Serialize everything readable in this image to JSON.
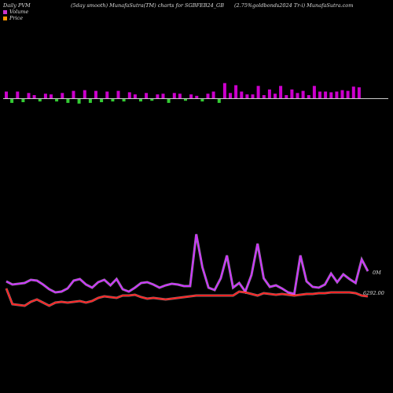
{
  "header": {
    "left": "Daily PVM",
    "center": "(5day smooth) MunafaSutra(TM) charts for SGBFEB24_GB",
    "right": "(2.75%goldbonds2024  Tr-i) MunafaSutra.com"
  },
  "legend": {
    "volume_label": "Volume",
    "price_label": "Price",
    "volume_color": "#cc33cc",
    "price_color": "#ff9900"
  },
  "labels": {
    "volume_axis": "0M",
    "price_axis": "6292.00"
  },
  "colors": {
    "background": "#000000",
    "volume_up": "#cc00cc",
    "volume_down": "#33cc33",
    "volume_line": "#cc33ff",
    "price_line": "#ff2222",
    "baseline": "#cccccc"
  },
  "chart_data": {
    "type": "line",
    "volume_bars": [
      10,
      -6,
      10,
      -5,
      8,
      5,
      -4,
      7,
      6,
      -4,
      8,
      -6,
      11,
      -7,
      12,
      -6,
      11,
      -5,
      10,
      -4,
      11,
      -4,
      9,
      6,
      -4,
      8,
      -3,
      6,
      7,
      -6,
      8,
      7,
      -3,
      6,
      4,
      -4,
      7,
      10,
      -6,
      22,
      8,
      19,
      10,
      6,
      6,
      18,
      5,
      13,
      7,
      18,
      5,
      13,
      8,
      11,
      5,
      18,
      10,
      10,
      9,
      10,
      12,
      11,
      17,
      16
    ],
    "series": [
      {
        "name": "Volume",
        "values": [
          358,
          362,
          361,
          360,
          356,
          357,
          362,
          368,
          372,
          371,
          367,
          357,
          355,
          362,
          366,
          359,
          356,
          363,
          355,
          368,
          371,
          366,
          360,
          359,
          362,
          366,
          363,
          361,
          362,
          364,
          364,
          298,
          340,
          366,
          369,
          354,
          325,
          366,
          360,
          371,
          350,
          310,
          354,
          365,
          363,
          367,
          372,
          374,
          325,
          358,
          365,
          366,
          362,
          348,
          359,
          349,
          355,
          360,
          330,
          345
        ]
      },
      {
        "name": "Price",
        "values": [
          6310,
          6290,
          6289,
          6288,
          6293,
          6296,
          6292,
          6288,
          6292,
          6293,
          6292,
          6293,
          6294,
          6292,
          6294,
          6298,
          6300,
          6299,
          6298,
          6301,
          6301,
          6302,
          6299,
          6297,
          6298,
          6297,
          6296,
          6297,
          6298,
          6299,
          6300,
          6301,
          6301,
          6301,
          6301,
          6301,
          6301,
          6301,
          6306,
          6305,
          6303,
          6301,
          6304,
          6303,
          6302,
          6303,
          6302,
          6301,
          6302,
          6303,
          6303,
          6304,
          6304,
          6305,
          6305,
          6305,
          6305,
          6304,
          6301,
          6300
        ]
      }
    ]
  }
}
